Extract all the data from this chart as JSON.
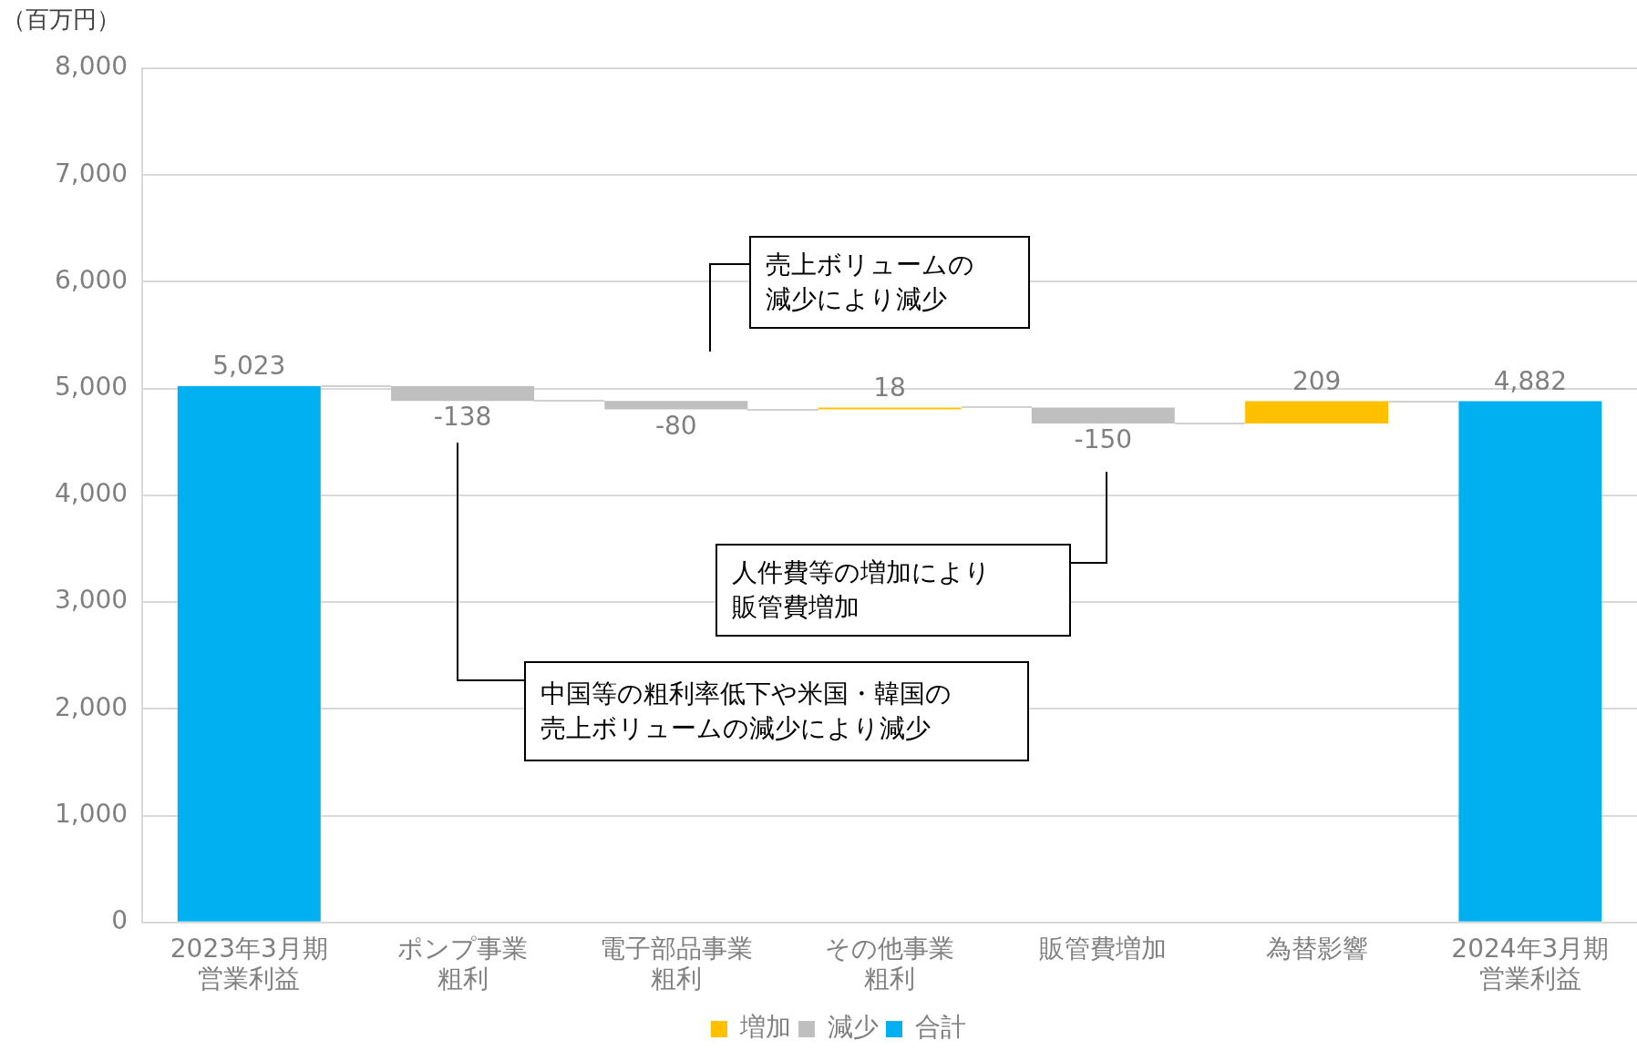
{
  "chart_data": {
    "type": "bar",
    "ylabel": "（百万円）",
    "categories": [
      "2023年3月期営業利益",
      "ポンプ事業粗利",
      "電子部品事業粗利",
      "その他事業粗利",
      "販管費増加",
      "為替影響",
      "2024年3月期営業利益"
    ],
    "series": [
      {
        "name": "増加",
        "color": "#ffc000",
        "values": [
          null,
          null,
          null,
          18,
          null,
          209,
          null
        ],
        "base": [
          null,
          null,
          null,
          4805,
          null,
          4673,
          null
        ],
        "value_labels": [
          null,
          null,
          null,
          "18",
          null,
          "209",
          null
        ]
      },
      {
        "name": "減少",
        "color": "#bfbfbf",
        "values": [
          null,
          -138,
          -80,
          null,
          -150,
          null,
          null
        ],
        "base": [
          null,
          5023,
          4885,
          null,
          4823,
          null,
          null
        ],
        "value_labels": [
          null,
          "-138",
          "-80",
          null,
          "-150",
          null,
          null
        ]
      },
      {
        "name": "合計",
        "color": "#00b0f0",
        "values": [
          5023,
          null,
          null,
          null,
          null,
          null,
          4882
        ],
        "base": [
          0,
          null,
          null,
          null,
          null,
          null,
          0
        ],
        "value_labels": [
          "5,023",
          null,
          null,
          null,
          null,
          null,
          "4,882"
        ]
      }
    ],
    "ylim": [
      0,
      8000
    ],
    "yticks": [
      0,
      {
        "value": 1000,
        "label": "1,000"
      },
      {
        "value": 2000,
        "label": "2,000"
      },
      {
        "value": 3000,
        "label": "3,000"
      },
      {
        "value": 4000,
        "label": "4,000"
      },
      {
        "value": 5000,
        "label": "5,000"
      },
      {
        "value": 6000,
        "label": "6,000"
      },
      {
        "value": 7000,
        "label": "7,000"
      },
      {
        "value": 8000,
        "label": "8,000"
      }
    ],
    "grid": "y",
    "legend": "bottom",
    "annotations": [
      "中国等の粗利率低下や米国・韓国の売上ボリュームの減少により減少",
      "売上ボリュームの減少により減少",
      "人件費等の増加により販管費増加"
    ]
  }
}
